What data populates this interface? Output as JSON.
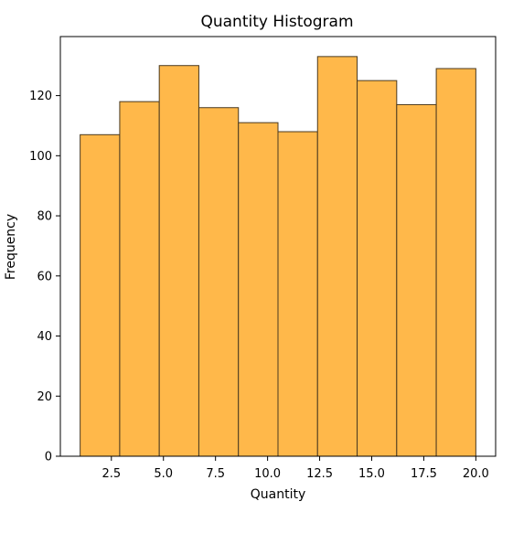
{
  "chart_data": {
    "type": "bar",
    "title": "Quantity Histogram",
    "xlabel": "Quantity",
    "ylabel": "Frequency",
    "bins": [
      {
        "x0": 1.0,
        "x1": 2.9,
        "value": 107
      },
      {
        "x0": 2.9,
        "x1": 4.8,
        "value": 118
      },
      {
        "x0": 4.8,
        "x1": 6.7,
        "value": 130
      },
      {
        "x0": 6.7,
        "x1": 8.6,
        "value": 116
      },
      {
        "x0": 8.6,
        "x1": 10.5,
        "value": 111
      },
      {
        "x0": 10.5,
        "x1": 12.4,
        "value": 108
      },
      {
        "x0": 12.4,
        "x1": 14.3,
        "value": 133
      },
      {
        "x0": 14.3,
        "x1": 16.2,
        "value": 125
      },
      {
        "x0": 16.2,
        "x1": 18.1,
        "value": 117
      },
      {
        "x0": 18.1,
        "x1": 20.0,
        "value": 129
      }
    ],
    "xlim": [
      0.05,
      20.95
    ],
    "ylim": [
      0,
      139.65
    ],
    "xticks": [
      2.5,
      5.0,
      7.5,
      10.0,
      12.5,
      15.0,
      17.5,
      20.0
    ],
    "xtick_labels": [
      "2.5",
      "5.0",
      "7.5",
      "10.0",
      "12.5",
      "15.0",
      "17.5",
      "20.0"
    ],
    "yticks": [
      0,
      20,
      40,
      60,
      80,
      100,
      120
    ],
    "ytick_labels": [
      "0",
      "20",
      "40",
      "60",
      "80",
      "100",
      "120"
    ],
    "grid": false,
    "bar_color": "#FFB84A",
    "edge_color": "#4a3a20"
  }
}
